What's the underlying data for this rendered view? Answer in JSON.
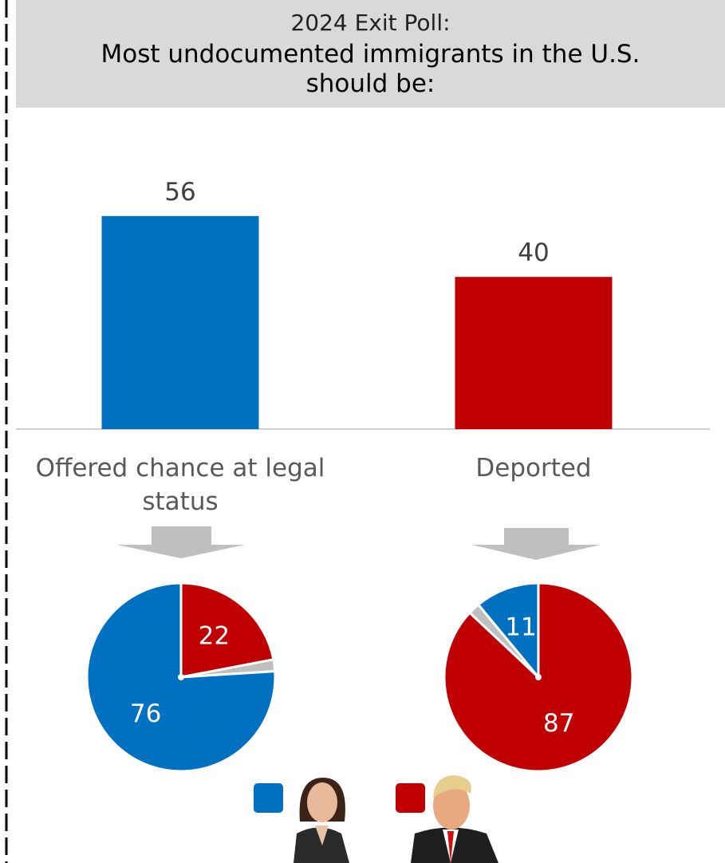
{
  "chart_data": [
    {
      "type": "bar",
      "title": "2024 Exit Poll:",
      "subtitle": "Most undocumented immigrants in the U.S. should be:",
      "categories": [
        "Offered chance at legal status",
        "Deported"
      ],
      "values": [
        56,
        40
      ],
      "colors": [
        "#0070c0",
        "#c00000"
      ]
    },
    {
      "type": "pie",
      "values": [
        22,
        2,
        76
      ],
      "colors": [
        "#c00000",
        "#bfbfbf",
        "#0070c0"
      ]
    },
    {
      "type": "pie",
      "values": [
        87,
        2,
        11
      ],
      "colors": [
        "#c00000",
        "#bfbfbf",
        "#0070c0"
      ]
    }
  ]
}
